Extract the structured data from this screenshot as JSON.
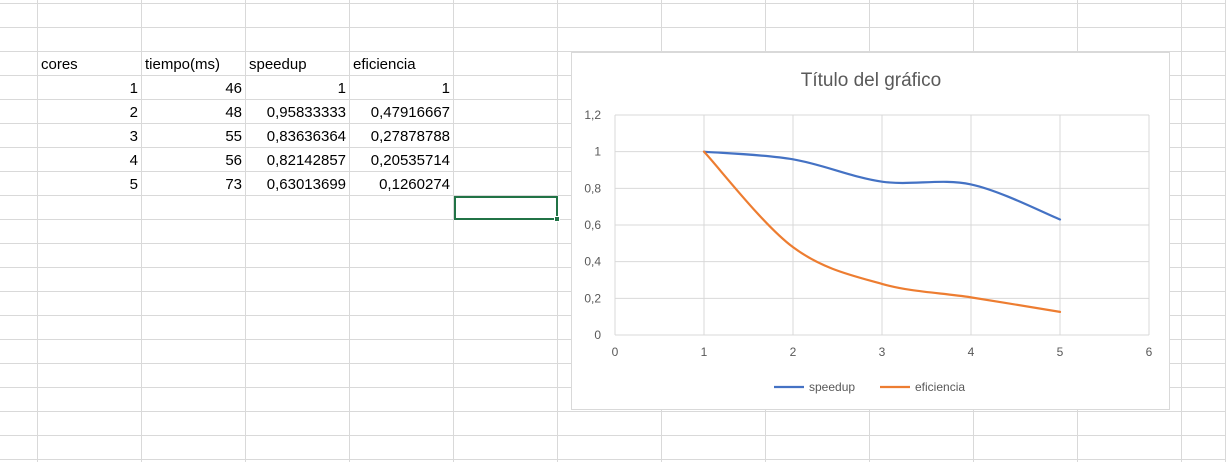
{
  "sheet": {
    "headers": [
      "cores",
      "tiempo(ms)",
      "speedup",
      "eficiencia"
    ],
    "rows": [
      [
        "1",
        "46",
        "1",
        "1"
      ],
      [
        "2",
        "48",
        "0,95833333",
        "0,47916667"
      ],
      [
        "3",
        "55",
        "0,83636364",
        "0,27878788"
      ],
      [
        "4",
        "56",
        "0,82142857",
        "0,20535714"
      ],
      [
        "5",
        "73",
        "0,63013699",
        "0,1260274"
      ]
    ]
  },
  "chart_data": {
    "type": "scatter",
    "title": "Título del gráfico",
    "xlabel": "",
    "ylabel": "",
    "xlim": [
      0,
      6
    ],
    "ylim": [
      0,
      1.2
    ],
    "x_ticks": [
      "0",
      "1",
      "2",
      "3",
      "4",
      "5",
      "6"
    ],
    "y_ticks": [
      "0",
      "0,2",
      "0,4",
      "0,6",
      "0,8",
      "1",
      "1,2"
    ],
    "grid": true,
    "legend": "bottom",
    "series": [
      {
        "name": "speedup",
        "color": "#4472C4",
        "x": [
          1,
          2,
          3,
          4,
          5
        ],
        "y": [
          1,
          0.95833333,
          0.83636364,
          0.82142857,
          0.63013699
        ]
      },
      {
        "name": "eficiencia",
        "color": "#ED7D31",
        "x": [
          1,
          2,
          3,
          4,
          5
        ],
        "y": [
          1,
          0.47916667,
          0.27878788,
          0.20535714,
          0.1260274
        ]
      }
    ]
  },
  "colors": {
    "gridline": "#d9d9d9",
    "selection": "#217346",
    "chart_grid": "#d9d9d9",
    "axis_text": "#595959"
  }
}
